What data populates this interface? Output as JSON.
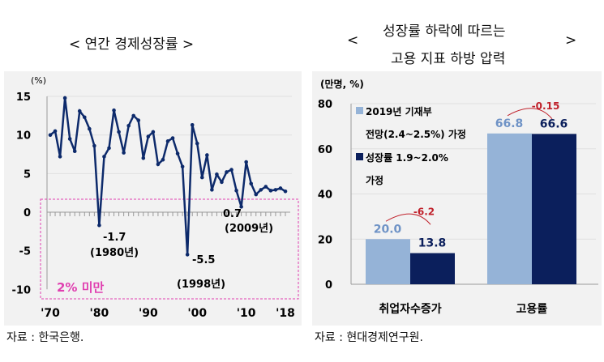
{
  "chart_data": [
    {
      "type": "line",
      "title": "< 연간 경제성장률 >",
      "unit": "(%)",
      "ylim": [
        -10,
        15
      ],
      "yticks": [
        15,
        10,
        5,
        0,
        -5,
        -10
      ],
      "xticks": [
        "'70",
        "'80",
        "'90",
        "'00",
        "'10",
        "'18"
      ],
      "x": [
        1970,
        1971,
        1972,
        1973,
        1974,
        1975,
        1976,
        1977,
        1978,
        1979,
        1980,
        1981,
        1982,
        1983,
        1984,
        1985,
        1986,
        1987,
        1988,
        1989,
        1990,
        1991,
        1992,
        1993,
        1994,
        1995,
        1996,
        1997,
        1998,
        1999,
        2000,
        2001,
        2002,
        2003,
        2004,
        2005,
        2006,
        2007,
        2008,
        2009,
        2010,
        2011,
        2012,
        2013,
        2014,
        2015,
        2016,
        2017,
        2018
      ],
      "values": [
        10.0,
        10.5,
        7.2,
        14.8,
        9.5,
        7.9,
        13.1,
        12.3,
        10.8,
        8.6,
        -1.7,
        7.2,
        8.3,
        13.2,
        10.4,
        7.7,
        11.2,
        12.5,
        11.9,
        7.0,
        9.8,
        10.4,
        6.2,
        6.8,
        9.2,
        9.6,
        7.6,
        5.9,
        -5.5,
        11.3,
        8.9,
        4.5,
        7.4,
        2.9,
        4.9,
        3.9,
        5.2,
        5.5,
        2.8,
        0.7,
        6.5,
        3.7,
        2.3,
        2.9,
        3.3,
        2.8,
        2.9,
        3.1,
        2.7
      ],
      "annotations": [
        {
          "value": "-1.7",
          "label": "(1980년)"
        },
        {
          "value": "-5.5",
          "label": "(1998년)"
        },
        {
          "value": "0.7",
          "label": "(2009년)"
        }
      ],
      "highlight_label": "2% 미만",
      "highlight_color": "#e040b0",
      "line_color": "#0d2a6b",
      "source": "자료 : 한국은행."
    },
    {
      "type": "bar",
      "title_line1": "성장률 하락에 따르는",
      "title_line2": "고용 지표 하방 압력",
      "unit": "(만명, %)",
      "ylim": [
        0,
        80
      ],
      "yticks": [
        80,
        60,
        40,
        20,
        0
      ],
      "categories": [
        "취업자수증가",
        "고용률"
      ],
      "series": [
        {
          "name": "2019년 기재부 전망(2.4~2.5%) 가정",
          "legend_line1": "2019년 기재부",
          "legend_line2": "전망(2.4~2.5%) 가정",
          "values": [
            20.0,
            66.8
          ],
          "labels": [
            "20.0",
            "66.8"
          ],
          "color": "#95b3d7"
        },
        {
          "name": "성장률 1.9~2.0% 가정",
          "legend_line1": "성장률 1.9~2.0%",
          "legend_line2": "가정",
          "values": [
            13.8,
            66.6
          ],
          "labels": [
            "13.8",
            "66.6"
          ],
          "color": "#0b1f5c"
        }
      ],
      "differences": [
        "-6.2",
        "-0.15"
      ],
      "diff_color": "#c0202a",
      "source": "자료 : 현대경제연구원."
    }
  ]
}
